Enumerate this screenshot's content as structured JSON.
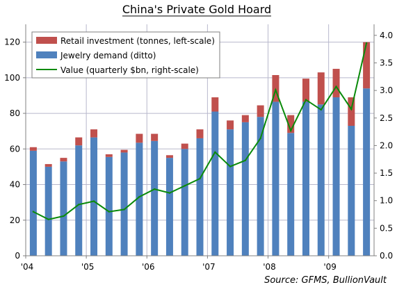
{
  "chart_data": {
    "type": "bar",
    "title": "China's Private Gold Hoard",
    "source": "Source: GFMS, BullionVault",
    "x_tick_labels": [
      "'04",
      "'05",
      "'06",
      "'07",
      "'08",
      "'09"
    ],
    "y_left": {
      "min": 0,
      "max": 130,
      "ticks": [
        0,
        20,
        40,
        60,
        80,
        100,
        120
      ]
    },
    "y_right": {
      "min": 0,
      "max": 4.2,
      "ticks": [
        "0.0",
        "0.5",
        "1.0",
        "1.5",
        "2.0",
        "2.5",
        "3.0",
        "3.5",
        "4.0"
      ]
    },
    "grid": true,
    "legend_position": "top-left",
    "series": [
      {
        "name": "Retail investment (tonnes, left-scale)",
        "kind": "stacked-bar",
        "color": "#c0504d",
        "values": [
          2,
          1.5,
          2,
          4.5,
          4.5,
          1.5,
          1.5,
          5,
          4,
          1.5,
          3,
          5,
          8,
          5,
          4,
          6.5,
          15,
          10,
          13,
          18,
          16,
          16,
          26
        ]
      },
      {
        "name": "Jewelry demand (ditto)",
        "kind": "stacked-bar",
        "color": "#4f81bd",
        "values": [
          59,
          50,
          53,
          62,
          66.5,
          55.5,
          58,
          63.5,
          64.5,
          55,
          60,
          66,
          81,
          71,
          75,
          78,
          86.5,
          69,
          86.5,
          85,
          89,
          73,
          94
        ]
      },
      {
        "name": "Value (quarterly $bn, right-scale)",
        "kind": "line",
        "color": "#0a8a0a",
        "values": [
          0.8,
          0.66,
          0.72,
          0.93,
          0.99,
          0.8,
          0.84,
          1.07,
          1.21,
          1.14,
          1.27,
          1.4,
          1.88,
          1.62,
          1.73,
          2.13,
          3.01,
          2.27,
          2.83,
          2.65,
          3.07,
          2.66,
          3.86
        ]
      }
    ]
  }
}
